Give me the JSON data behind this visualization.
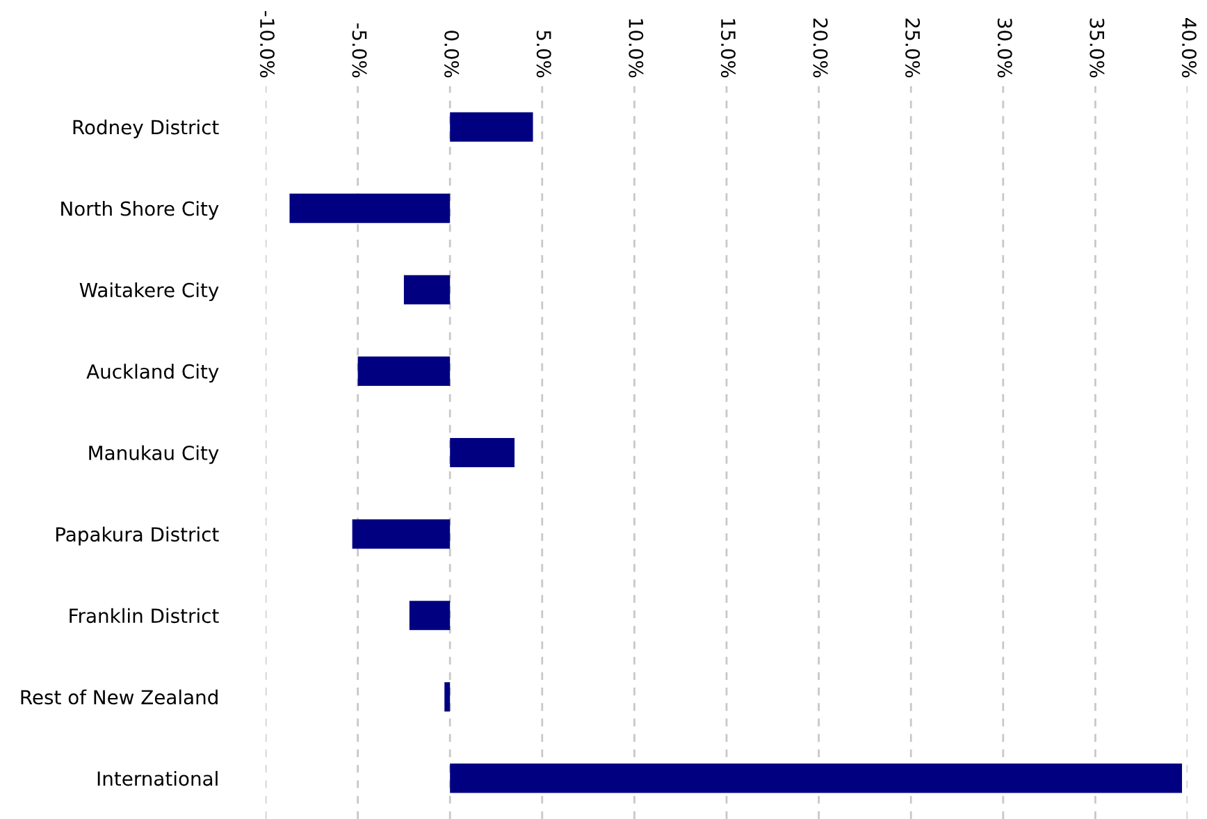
{
  "chart_data": {
    "type": "bar",
    "orientation": "horizontal",
    "categories": [
      "Rodney District",
      "North Shore City",
      "Waitakere City",
      "Auckland City",
      "Manukau City",
      "Papakura District",
      "Franklin District",
      "Rest of New Zealand",
      "International"
    ],
    "values": [
      4.5,
      -8.7,
      -2.5,
      -5.0,
      3.5,
      -5.3,
      -2.2,
      -0.3,
      39.7
    ],
    "color": "#000080",
    "xlim": [
      -10,
      40
    ],
    "xticks": [
      {
        "value": -10,
        "label": "-10.0%"
      },
      {
        "value": -5,
        "label": "-5.0%"
      },
      {
        "value": 0,
        "label": "0.0%"
      },
      {
        "value": 5,
        "label": "5.0%"
      },
      {
        "value": 10,
        "label": "10.0%"
      },
      {
        "value": 15,
        "label": "15.0%"
      },
      {
        "value": 20,
        "label": "20.0%"
      },
      {
        "value": 25,
        "label": "25.0%"
      },
      {
        "value": 30,
        "label": "30.0%"
      },
      {
        "value": 35,
        "label": "35.0%"
      },
      {
        "value": 40,
        "label": "40.0%"
      }
    ],
    "grid": "x"
  }
}
